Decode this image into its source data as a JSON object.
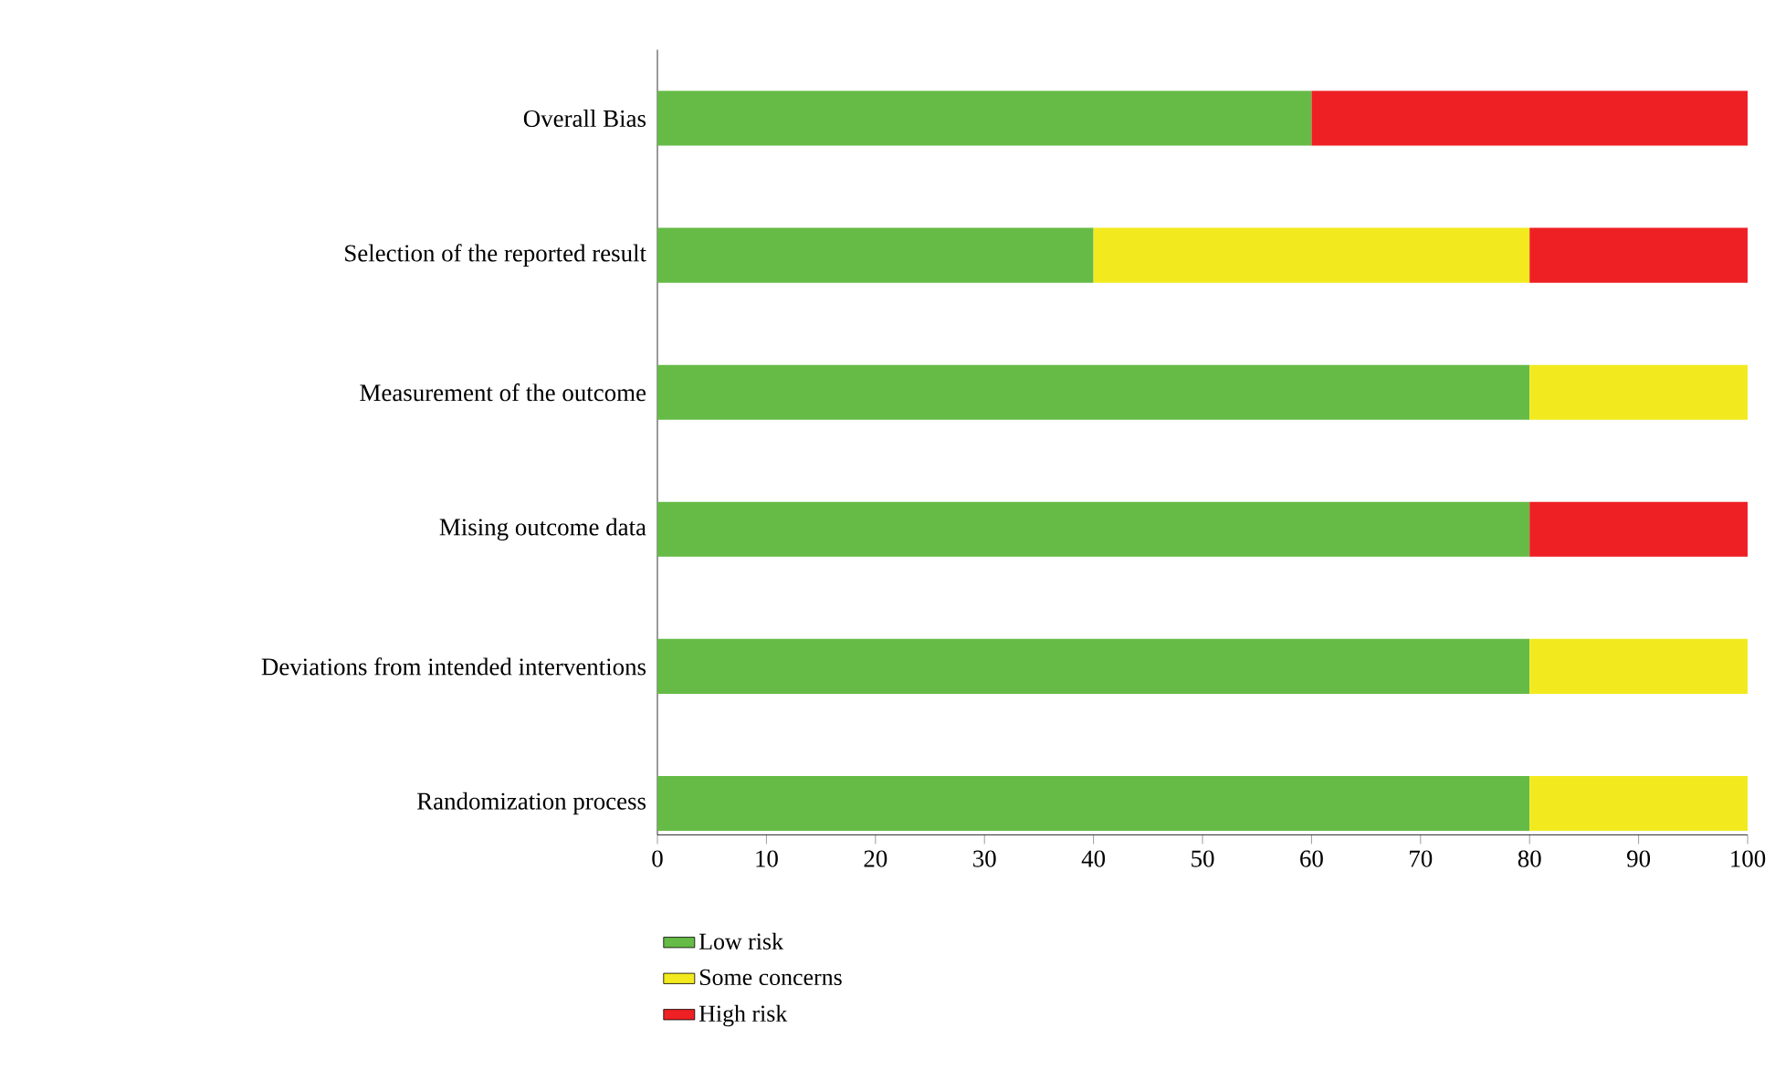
{
  "chart_data": {
    "type": "bar",
    "orientation": "horizontal",
    "stacked": true,
    "categories": [
      "Overall Bias",
      "Selection of the reported result",
      "Measurement of the outcome",
      "Mising outcome data",
      "Deviations from intended interventions",
      "Randomization process"
    ],
    "series": [
      {
        "name": "Low risk",
        "color": "#66bb46",
        "values": [
          60,
          40,
          80,
          80,
          80,
          80
        ]
      },
      {
        "name": "Some concerns",
        "color": "#f2ea1e",
        "values": [
          null,
          40,
          20,
          null,
          20,
          20
        ]
      },
      {
        "name": "High risk",
        "color": "#ee2024",
        "values": [
          40,
          20,
          null,
          20,
          null,
          null
        ]
      }
    ],
    "xlim": [
      0,
      100
    ],
    "xticks": [
      0,
      10,
      20,
      30,
      40,
      50,
      60,
      70,
      80,
      90,
      100
    ],
    "grid": false,
    "legend": "bottom"
  }
}
